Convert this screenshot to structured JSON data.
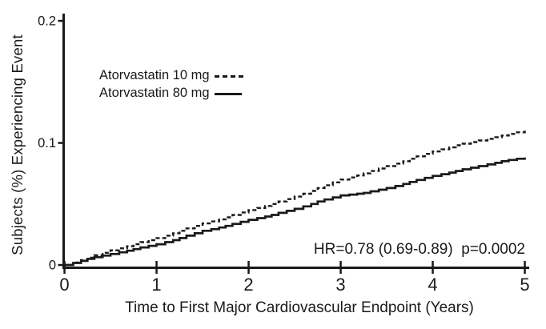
{
  "figure": {
    "background": "#ffffff",
    "ink_color": "#1a1a1a"
  },
  "chart_data": {
    "type": "line",
    "subtype": "cumulative-incidence-step-curves",
    "title": "",
    "xlabel": "Time to First Major Cardiovascular Endpoint (Years)",
    "ylabel": "Subjects (%) Experiencing Event",
    "xlim": [
      0,
      5
    ],
    "ylim": [
      0,
      0.2
    ],
    "grid": false,
    "x_ticks": [
      0,
      1,
      2,
      3,
      4,
      5
    ],
    "x_tick_labels": [
      "0",
      "1",
      "2",
      "3",
      "4",
      "5"
    ],
    "y_ticks": [
      0,
      0.1,
      0.2
    ],
    "y_tick_labels": [
      "0",
      "0.1",
      "0.2"
    ],
    "legend_position": "upper-left-inside",
    "x": [
      0,
      0.25,
      0.5,
      0.75,
      1,
      1.25,
      1.5,
      1.75,
      2,
      2.25,
      2.5,
      2.75,
      3,
      3.25,
      3.5,
      3.75,
      4,
      4.25,
      4.5,
      4.75,
      5
    ],
    "series": [
      {
        "name": "Atorvastatin 10 mg",
        "style": "dashed",
        "color": "#1a1a1a",
        "values": [
          0,
          0.006,
          0.012,
          0.017,
          0.022,
          0.028,
          0.034,
          0.039,
          0.045,
          0.05,
          0.056,
          0.063,
          0.07,
          0.075,
          0.081,
          0.087,
          0.093,
          0.098,
          0.102,
          0.106,
          0.11
        ]
      },
      {
        "name": "Atorvastatin 80 mg",
        "style": "solid",
        "color": "#1a1a1a",
        "values": [
          0,
          0.005,
          0.009,
          0.013,
          0.017,
          0.022,
          0.028,
          0.032,
          0.037,
          0.041,
          0.046,
          0.052,
          0.057,
          0.059,
          0.063,
          0.068,
          0.073,
          0.077,
          0.081,
          0.085,
          0.088
        ]
      }
    ],
    "annotation": "HR=0.78 (0.69-0.89)  p=0.0002"
  }
}
